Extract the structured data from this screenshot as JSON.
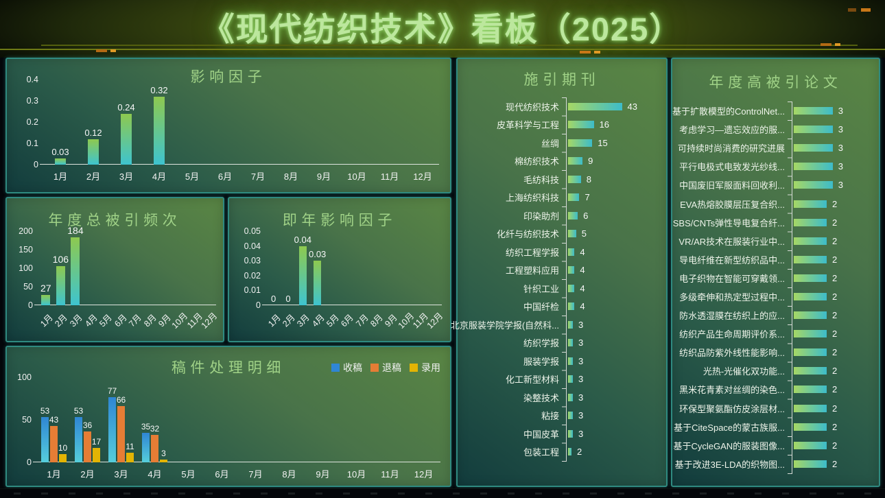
{
  "page": {
    "title": "《现代纺织技术》看板（2025）"
  },
  "colors": {
    "background": "#04060a",
    "panel_border": "#2f8a80",
    "panel_title": "#a0d287",
    "title_text": "#bce79d",
    "bar_gradient_top": "#8ec94f",
    "bar_gradient_bottom": "#3ec4cf",
    "hbar_gradient_left": "#a6d765",
    "hbar_gradient_right": "#3dbcc9"
  },
  "chart_data": [
    {
      "id": "impact_factor",
      "type": "bar",
      "title": "影响因子",
      "categories": [
        "1月",
        "2月",
        "3月",
        "4月",
        "5月",
        "6月",
        "7月",
        "8月",
        "9月",
        "10月",
        "11月",
        "12月"
      ],
      "values": [
        0.03,
        0.12,
        0.24,
        0.32,
        null,
        null,
        null,
        null,
        null,
        null,
        null,
        null
      ],
      "ylim": [
        0,
        0.4
      ],
      "yticks": [
        0,
        0.1,
        0.2,
        0.3,
        0.4
      ],
      "rotate_labels": false,
      "grid": false,
      "legend_position": "none"
    },
    {
      "id": "annual_citations",
      "type": "bar",
      "title": "年度总被引频次",
      "categories": [
        "1月",
        "2月",
        "3月",
        "4月",
        "5月",
        "6月",
        "7月",
        "8月",
        "9月",
        "10月",
        "11月",
        "12月"
      ],
      "values": [
        27,
        106,
        184,
        null,
        null,
        null,
        null,
        null,
        null,
        null,
        null,
        null
      ],
      "ylim": [
        0,
        200
      ],
      "yticks": [
        0,
        50,
        100,
        150,
        200
      ],
      "rotate_labels": true,
      "grid": false,
      "legend_position": "none"
    },
    {
      "id": "current_year_impact",
      "type": "bar",
      "title": "即年影响因子",
      "categories": [
        "1月",
        "2月",
        "3月",
        "4月",
        "5月",
        "6月",
        "7月",
        "8月",
        "9月",
        "10月",
        "11月",
        "12月"
      ],
      "values": [
        0,
        0,
        0.04,
        0.03,
        null,
        null,
        null,
        null,
        null,
        null,
        null,
        null
      ],
      "ylim": [
        0,
        0.05
      ],
      "yticks": [
        0,
        0.01,
        0.02,
        0.03,
        0.04,
        0.05
      ],
      "rotate_labels": true,
      "grid": false,
      "legend_position": "none"
    },
    {
      "id": "manuscripts",
      "type": "grouped-bar",
      "title": "稿件处理明细",
      "categories": [
        "1月",
        "2月",
        "3月",
        "4月",
        "5月",
        "6月",
        "7月",
        "8月",
        "9月",
        "10月",
        "11月",
        "12月"
      ],
      "series": [
        {
          "key": "received",
          "name": "收稿",
          "color_top": "#2f86d4",
          "color_bottom": "#56cedb",
          "values": [
            53,
            53,
            77,
            35,
            null,
            null,
            null,
            null,
            null,
            null,
            null,
            null
          ]
        },
        {
          "key": "rejected",
          "name": "退稿",
          "color_top": "#e67d35",
          "color_bottom": "#e67d35",
          "values": [
            43,
            36,
            66,
            32,
            null,
            null,
            null,
            null,
            null,
            null,
            null,
            null
          ]
        },
        {
          "key": "accepted",
          "name": "录用",
          "color_top": "#e3b404",
          "color_bottom": "#e3b404",
          "values": [
            10,
            17,
            11,
            3,
            null,
            null,
            null,
            null,
            null,
            null,
            null,
            null
          ]
        }
      ],
      "ylim": [
        0,
        100
      ],
      "yticks": [
        0,
        50,
        100
      ],
      "rotate_labels": false,
      "grid": false,
      "legend_position": "top-right"
    },
    {
      "id": "citing_journals",
      "type": "hbar",
      "title": "施引期刊",
      "max": 43,
      "items": [
        {
          "label": "现代纺织技术",
          "value": 43
        },
        {
          "label": "皮革科学与工程",
          "value": 16
        },
        {
          "label": "丝绸",
          "value": 15
        },
        {
          "label": "棉纺织技术",
          "value": 9
        },
        {
          "label": "毛纺科技",
          "value": 8
        },
        {
          "label": "上海纺织科技",
          "value": 7
        },
        {
          "label": "印染助剂",
          "value": 6
        },
        {
          "label": "化纤与纺织技术",
          "value": 5
        },
        {
          "label": "纺织工程学报",
          "value": 4
        },
        {
          "label": "工程塑料应用",
          "value": 4
        },
        {
          "label": "针织工业",
          "value": 4
        },
        {
          "label": "中国纤检",
          "value": 4
        },
        {
          "label": "北京服装学院学报(自然科...",
          "value": 3
        },
        {
          "label": "纺织学报",
          "value": 3
        },
        {
          "label": "服装学报",
          "value": 3
        },
        {
          "label": "化工新型材料",
          "value": 3
        },
        {
          "label": "染整技术",
          "value": 3
        },
        {
          "label": "粘接",
          "value": 3
        },
        {
          "label": "中国皮革",
          "value": 3
        },
        {
          "label": "包装工程",
          "value": 2
        }
      ]
    },
    {
      "id": "top_papers",
      "type": "hbar",
      "title": "年度高被引论文",
      "max": 3,
      "items": [
        {
          "label": "基于扩散模型的ControlNet...",
          "value": 3
        },
        {
          "label": "考虑学习—遗忘效应的服...",
          "value": 3
        },
        {
          "label": "可持续时尚消费的研究进展",
          "value": 3
        },
        {
          "label": "平行电极式电致发光纱线...",
          "value": 3
        },
        {
          "label": "中国废旧军服面料回收利...",
          "value": 3
        },
        {
          "label": "EVA热熔胶膜层压复合织...",
          "value": 2
        },
        {
          "label": "SBS/CNTs弹性导电复合纤...",
          "value": 2
        },
        {
          "label": "VR/AR技术在服装行业中...",
          "value": 2
        },
        {
          "label": "导电纤维在新型纺织品中...",
          "value": 2
        },
        {
          "label": "电子织物在智能可穿戴领...",
          "value": 2
        },
        {
          "label": "多级牵伸和热定型过程中...",
          "value": 2
        },
        {
          "label": "防水透湿膜在纺织上的应...",
          "value": 2
        },
        {
          "label": "纺织产品生命周期评价系...",
          "value": 2
        },
        {
          "label": "纺织品防紫外线性能影响...",
          "value": 2
        },
        {
          "label": "光热-光催化双功能...",
          "value": 2
        },
        {
          "label": "黑米花青素对丝绸的染色...",
          "value": 2
        },
        {
          "label": "环保型聚氨酯仿皮涂层材...",
          "value": 2
        },
        {
          "label": "基于CiteSpace的蒙古族服...",
          "value": 2
        },
        {
          "label": "基于CycleGAN的服装图像...",
          "value": 2
        },
        {
          "label": "基于改进3E-LDA的织物图...",
          "value": 2
        }
      ]
    }
  ]
}
